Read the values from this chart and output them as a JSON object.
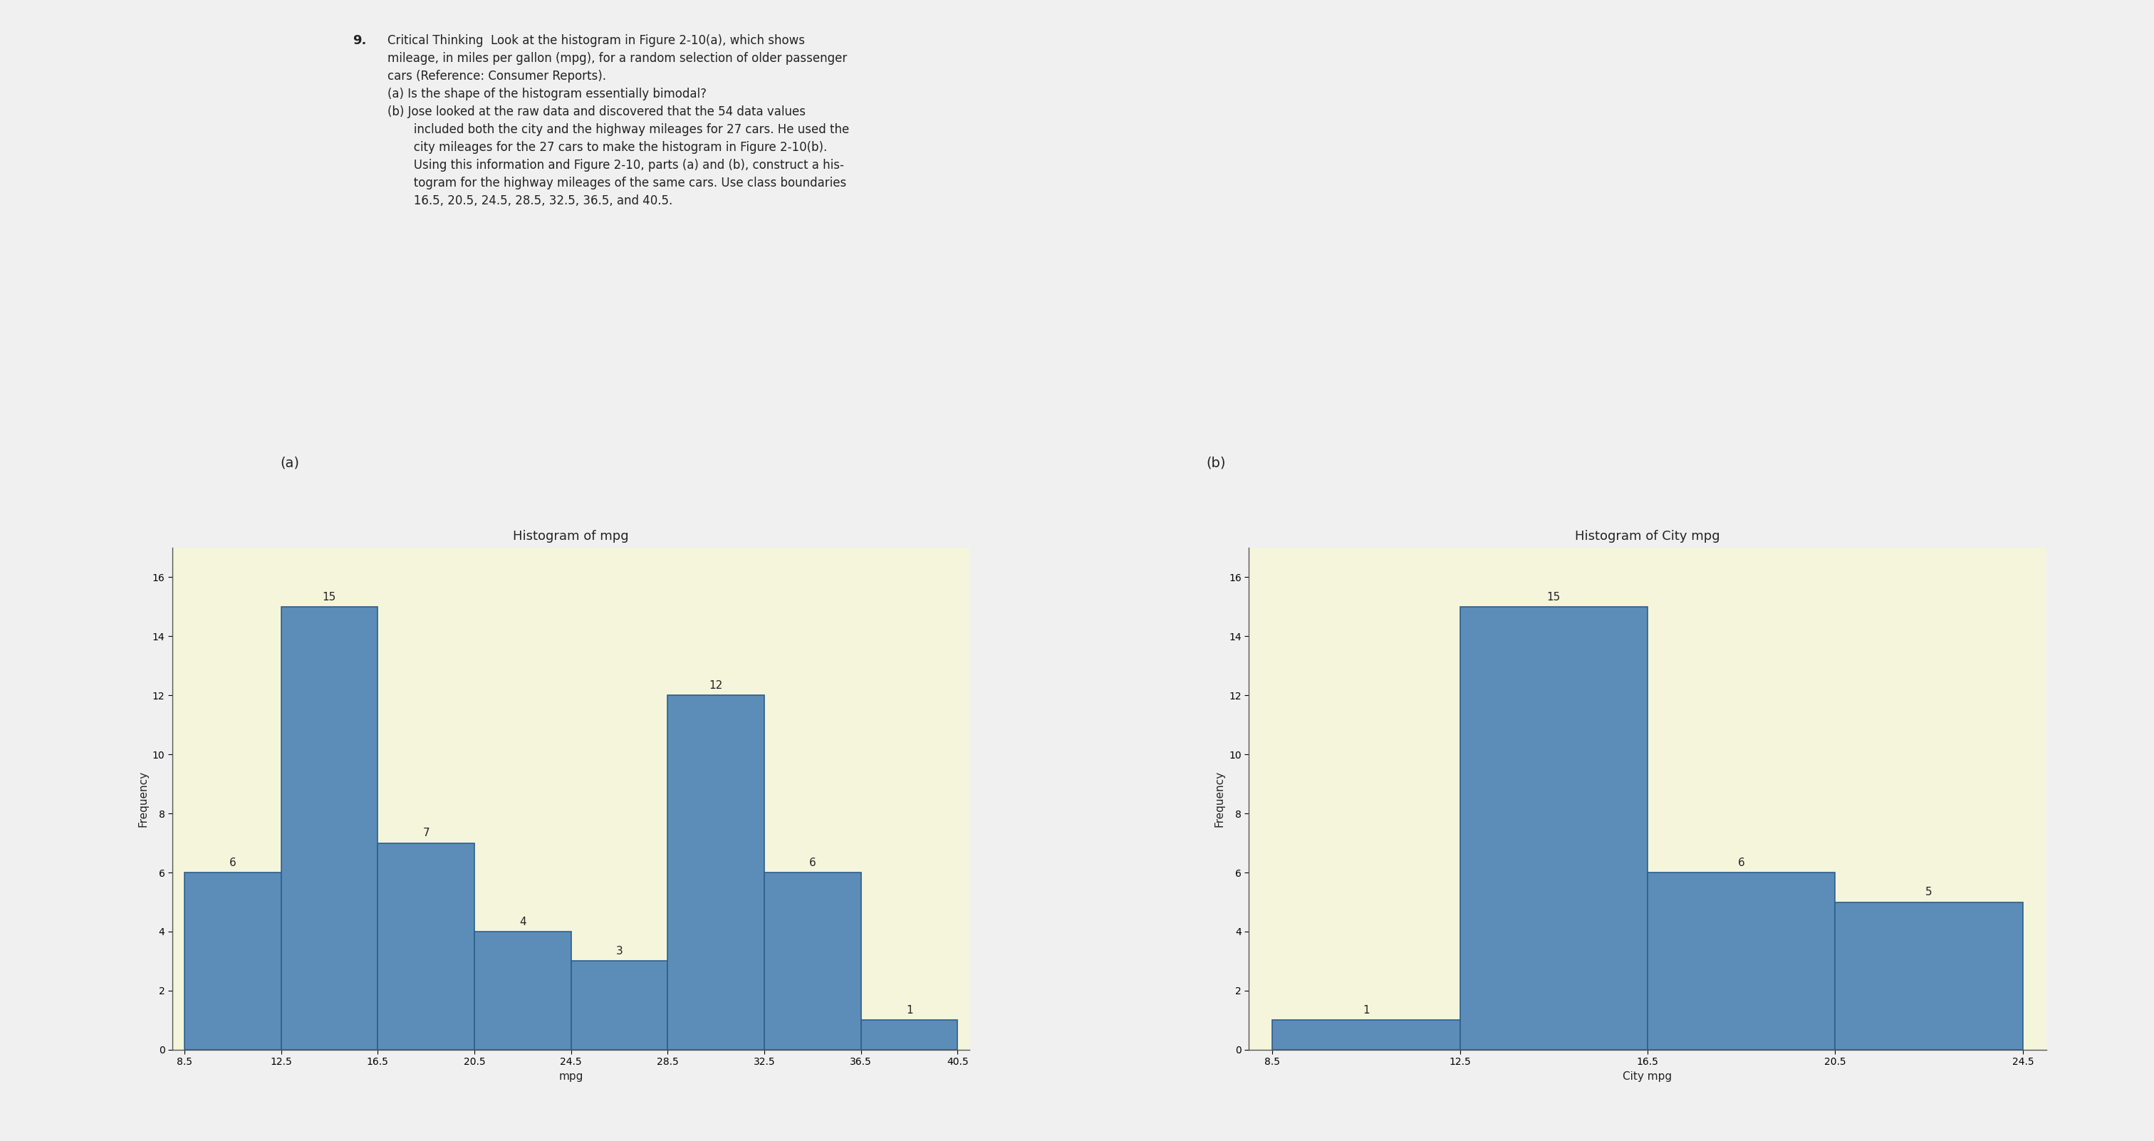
{
  "hist_a": {
    "title": "Histogram of mpg",
    "xlabel": "mpg",
    "ylabel": "Frequency",
    "boundaries": [
      8.5,
      12.5,
      16.5,
      20.5,
      24.5,
      28.5,
      32.5,
      36.5,
      40.5
    ],
    "frequencies": [
      6,
      15,
      7,
      4,
      3,
      12,
      6,
      1
    ],
    "bar_color": "#5b8db8",
    "bar_edge_color": "#2c5f8a",
    "ylim": [
      0,
      17
    ],
    "yticks": [
      0,
      2,
      4,
      6,
      8,
      10,
      12,
      14,
      16
    ],
    "background_color": "#f5f5dc"
  },
  "hist_b": {
    "title": "Histogram of City mpg",
    "xlabel": "City mpg",
    "ylabel": "Frequency",
    "boundaries": [
      8.5,
      12.5,
      16.5,
      20.5,
      24.5
    ],
    "frequencies": [
      1,
      15,
      6,
      5
    ],
    "bar_color": "#5b8db8",
    "bar_edge_color": "#2c5f8a",
    "ylim": [
      0,
      17
    ],
    "yticks": [
      0,
      2,
      4,
      6,
      8,
      10,
      12,
      14,
      16
    ],
    "background_color": "#f5f5dc"
  },
  "label_a": "(a)",
  "label_b": "(b)",
  "figure_bg": "#f0f0f0",
  "text_color": "#222222",
  "annotation_fontsize": 11,
  "title_fontsize": 13,
  "axis_label_fontsize": 11,
  "tick_fontsize": 10
}
